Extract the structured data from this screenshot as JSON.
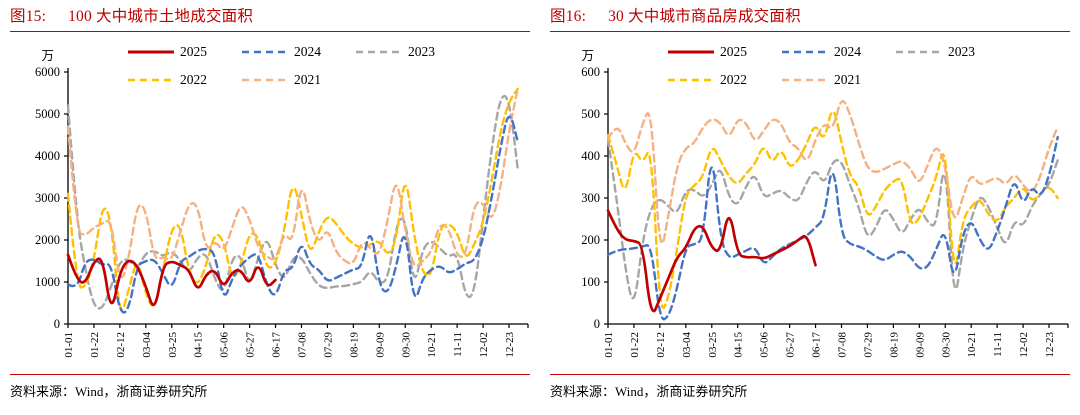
{
  "page": {
    "background": "#ffffff",
    "accent_red": "#c00000",
    "text_color": "#111111"
  },
  "panels": [
    {
      "fig_label": "图15:",
      "title": "100 大中城市土地成交面积",
      "source": "资料来源：Wind，浙商证券研究所"
    },
    {
      "fig_label": "图16:",
      "title": "30 大中城市商品房成交面积",
      "source": "资料来源：Wind，浙商证券研究所"
    }
  ],
  "chart_data": [
    {
      "type": "line",
      "title": "100 大中城市土地成交面积",
      "unit_label": "万",
      "ylim": [
        0,
        6000
      ],
      "yticks": [
        0,
        1000,
        2000,
        3000,
        4000,
        5000,
        6000
      ],
      "grid": false,
      "x_frequency": "weekly, 53 points per year, axis ticks every 3 weeks",
      "x_tick_labels": [
        "01-01",
        "01-22",
        "02-12",
        "03-04",
        "03-25",
        "04-15",
        "05-06",
        "05-27",
        "06-17",
        "07-08",
        "07-29",
        "08-19",
        "09-09",
        "09-30",
        "10-21",
        "11-11",
        "12-02",
        "12-23"
      ],
      "legend": {
        "position": "top-inside",
        "rows": [
          [
            "2025",
            "2024",
            "2023"
          ],
          [
            "2022",
            "2021"
          ]
        ]
      },
      "series": [
        {
          "name": "2025",
          "color": "#C00000",
          "style": "solid",
          "values": [
            1650,
            1050,
            950,
            1500,
            1600,
            200,
            1250,
            1550,
            1400,
            900,
            250,
            1400,
            1500,
            1400,
            1300,
            750,
            1200,
            1300,
            850,
            1250,
            1300,
            900,
            1500,
            850,
            1050,
            null,
            null,
            null,
            null,
            null,
            null,
            null,
            null,
            null,
            null,
            null,
            null,
            null,
            null,
            null,
            null,
            null,
            null,
            null,
            null,
            null,
            null,
            null,
            null,
            null,
            null,
            null,
            null
          ]
        },
        {
          "name": "2024",
          "color": "#4472C4",
          "style": "dashed",
          "values": [
            950,
            800,
            1500,
            1550,
            1400,
            1450,
            250,
            300,
            1400,
            1500,
            1550,
            1200,
            800,
            1500,
            1600,
            1750,
            1800,
            1700,
            500,
            1100,
            1400,
            1600,
            1700,
            900,
            600,
            1300,
            1300,
            2000,
            1400,
            1300,
            1000,
            1100,
            1200,
            1300,
            1350,
            2400,
            900,
            700,
            1400,
            2400,
            400,
            1100,
            1300,
            1400,
            1200,
            1300,
            1450,
            1500,
            2000,
            3000,
            4200,
            5150,
            4350
          ]
        },
        {
          "name": "2023",
          "color": "#A6A6A6",
          "style": "dashed",
          "values": [
            5200,
            2500,
            1300,
            400,
            350,
            900,
            1500,
            1550,
            1300,
            1700,
            1750,
            1600,
            1750,
            1500,
            1200,
            1600,
            1700,
            1050,
            700,
            1600,
            1650,
            850,
            1600,
            2100,
            1400,
            1000,
            1600,
            1600,
            1200,
            900,
            850,
            900,
            900,
            950,
            1000,
            1300,
            950,
            1050,
            2400,
            2600,
            800,
            1800,
            2000,
            1800,
            1600,
            1700,
            600,
            700,
            2500,
            4200,
            5450,
            5400,
            3700
          ]
        },
        {
          "name": "2022",
          "color": "#FFC000",
          "style": "dashed",
          "values": [
            3100,
            900,
            850,
            1500,
            2900,
            2500,
            50,
            800,
            1600,
            700,
            300,
            1300,
            2300,
            2400,
            1200,
            900,
            1400,
            2200,
            2000,
            1000,
            1400,
            2200,
            2100,
            1300,
            1400,
            2200,
            3500,
            2600,
            1600,
            2200,
            2600,
            2400,
            2100,
            1900,
            1800,
            1900,
            2000,
            1600,
            2000,
            3700,
            2100,
            1200,
            1100,
            2300,
            2400,
            2200,
            1500,
            1900,
            2400,
            3400,
            4600,
            5300,
            5600
          ]
        },
        {
          "name": "2021",
          "color": "#F4B183",
          "style": "dashed",
          "values": [
            4700,
            2200,
            2100,
            2300,
            2400,
            2500,
            900,
            1500,
            2900,
            2750,
            1500,
            1600,
            1500,
            2200,
            2900,
            2850,
            1700,
            2000,
            1700,
            2300,
            2900,
            2500,
            1800,
            1600,
            1500,
            2200,
            1900,
            3500,
            2400,
            1900,
            2300,
            1700,
            1500,
            1400,
            2000,
            1800,
            1600,
            2500,
            3600,
            2200,
            1300,
            1500,
            1700,
            2400,
            2300,
            1600,
            1600,
            2900,
            2900,
            2400,
            3200,
            4600,
            5600
          ]
        }
      ]
    },
    {
      "type": "line",
      "title": "30 大中城市商品房成交面积",
      "unit_label": "万",
      "ylim": [
        0,
        600
      ],
      "yticks": [
        0,
        100,
        200,
        300,
        400,
        500,
        600
      ],
      "grid": false,
      "x_frequency": "weekly, 53 points per year, axis ticks every 3 weeks",
      "x_tick_labels": [
        "01-01",
        "01-22",
        "02-12",
        "03-04",
        "03-25",
        "04-15",
        "05-06",
        "05-27",
        "06-17",
        "07-08",
        "07-29",
        "08-19",
        "09-09",
        "09-30",
        "10-21",
        "11-11",
        "12-02",
        "12-23"
      ],
      "legend": {
        "position": "top-inside",
        "rows": [
          [
            "2025",
            "2024",
            "2023"
          ],
          [
            "2022",
            "2021"
          ]
        ]
      },
      "series": [
        {
          "name": "2025",
          "color": "#C00000",
          "style": "solid",
          "values": [
            270,
            225,
            200,
            198,
            190,
            12,
            60,
            110,
            160,
            180,
            230,
            235,
            180,
            170,
            280,
            165,
            158,
            160,
            155,
            165,
            175,
            185,
            200,
            215,
            140,
            null,
            null,
            null,
            null,
            null,
            null,
            null,
            null,
            null,
            null,
            null,
            null,
            null,
            null,
            null,
            null,
            null,
            null,
            null,
            null,
            null,
            null,
            null,
            null,
            null,
            null,
            null,
            null
          ]
        },
        {
          "name": "2024",
          "color": "#4472C4",
          "style": "dashed",
          "values": [
            165,
            175,
            178,
            180,
            185,
            190,
            8,
            15,
            85,
            185,
            190,
            200,
            430,
            200,
            155,
            165,
            175,
            185,
            140,
            160,
            180,
            190,
            200,
            210,
            230,
            250,
            400,
            210,
            190,
            185,
            175,
            160,
            150,
            165,
            175,
            160,
            130,
            135,
            180,
            230,
            90,
            215,
            250,
            200,
            170,
            220,
            280,
            350,
            280,
            330,
            300,
            350,
            445
          ]
        },
        {
          "name": "2023",
          "color": "#A6A6A6",
          "style": "dashed",
          "values": [
            440,
            300,
            130,
            30,
            200,
            280,
            300,
            280,
            260,
            320,
            320,
            300,
            330,
            380,
            300,
            280,
            330,
            360,
            300,
            310,
            320,
            300,
            290,
            340,
            370,
            330,
            390,
            390,
            330,
            280,
            200,
            230,
            280,
            250,
            210,
            250,
            280,
            240,
            230,
            420,
            30,
            180,
            250,
            310,
            280,
            230,
            180,
            250,
            230,
            280,
            310,
            330,
            390
          ]
        },
        {
          "name": "2022",
          "color": "#FFC000",
          "style": "dashed",
          "values": [
            450,
            380,
            300,
            420,
            380,
            430,
            20,
            60,
            180,
            310,
            330,
            350,
            430,
            390,
            350,
            330,
            360,
            380,
            430,
            380,
            420,
            370,
            390,
            430,
            480,
            430,
            530,
            430,
            350,
            330,
            250,
            280,
            320,
            340,
            350,
            230,
            250,
            300,
            350,
            440,
            90,
            250,
            280,
            300,
            260,
            240,
            280,
            300,
            330,
            290,
            310,
            330,
            300
          ]
        },
        {
          "name": "2021",
          "color": "#F4B183",
          "style": "dashed",
          "values": [
            440,
            480,
            430,
            400,
            480,
            520,
            150,
            260,
            380,
            420,
            430,
            470,
            490,
            480,
            440,
            490,
            480,
            430,
            460,
            490,
            480,
            430,
            420,
            380,
            440,
            480,
            460,
            545,
            500,
            430,
            370,
            360,
            370,
            380,
            390,
            370,
            330,
            380,
            430,
            380,
            230,
            300,
            360,
            330,
            340,
            350,
            330,
            360,
            330,
            310,
            350,
            420,
            470
          ]
        }
      ]
    }
  ]
}
